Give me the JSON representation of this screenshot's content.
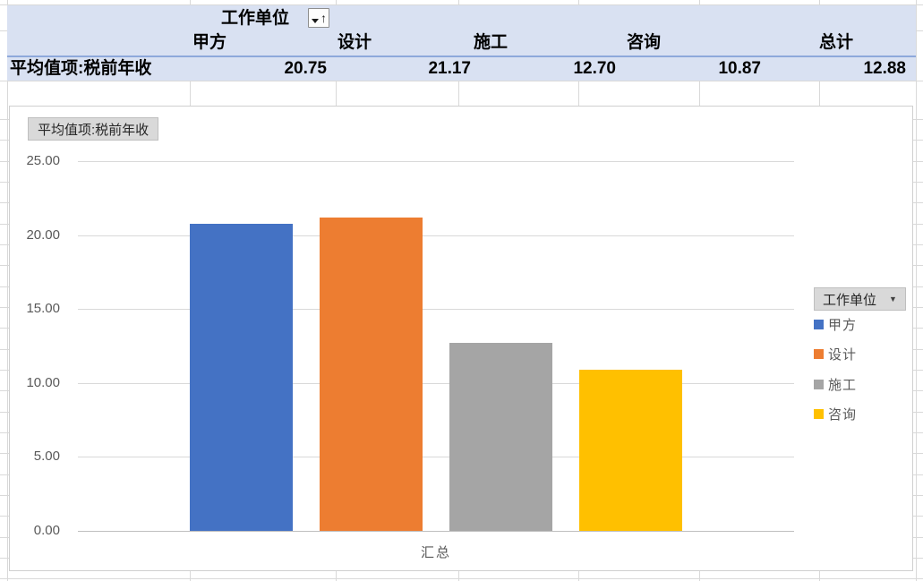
{
  "pivot_table": {
    "field_button_label": "工作单位",
    "row_label": "平均值项:税前年收",
    "column_headers": [
      "甲方",
      "设计",
      "施工",
      "咨询",
      "总计"
    ],
    "values": [
      "20.75",
      "21.17",
      "12.70",
      "10.87",
      "12.88"
    ]
  },
  "chart": {
    "value_field_button": "平均值项:税前年收",
    "legend_field_button": "工作单位",
    "axis_category_label": "汇总"
  },
  "chart_data": {
    "type": "bar",
    "title": "",
    "categories": [
      "汇总"
    ],
    "series": [
      {
        "name": "甲方",
        "values": [
          20.75
        ],
        "color": "#4472C4"
      },
      {
        "name": "设计",
        "values": [
          21.17
        ],
        "color": "#ED7D31"
      },
      {
        "name": "施工",
        "values": [
          12.7
        ],
        "color": "#A5A5A5"
      },
      {
        "name": "咨询",
        "values": [
          10.87
        ],
        "color": "#FFC000"
      }
    ],
    "xlabel": "汇总",
    "ylabel": "",
    "ylim": [
      0,
      25
    ],
    "ytick_step": 5,
    "ytick_labels": [
      "0.00",
      "5.00",
      "10.00",
      "15.00",
      "20.00",
      "25.00"
    ],
    "grid": true,
    "legend_title": "工作单位",
    "legend_position": "right"
  },
  "colors": {
    "pivot_fill": "#D9E1F2",
    "pivot_border_line": "#8EA9DB",
    "sheet_gridline": "#D9D9D9",
    "chart_gridline": "#D9D9D9",
    "axis_text": "#595959",
    "field_button_bg": "#D9D9D9"
  }
}
